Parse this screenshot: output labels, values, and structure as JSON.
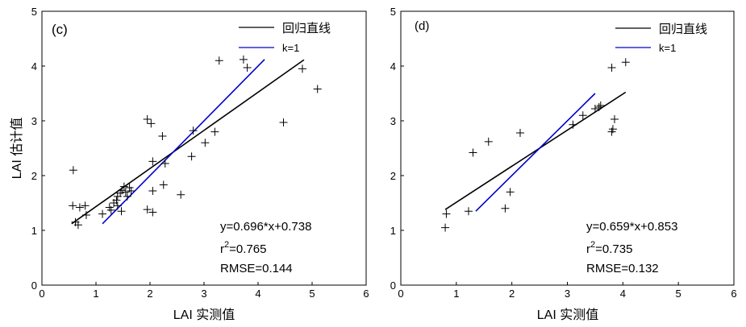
{
  "chart_data": [
    {
      "type": "scatter",
      "panel_label": "(c)",
      "xlabel": "LAI 实测值",
      "ylabel": "LAI 估计值",
      "xlim": [
        0,
        6
      ],
      "ylim": [
        0,
        5
      ],
      "xticks": [
        0,
        1,
        2,
        3,
        4,
        5,
        6
      ],
      "yticks": [
        0,
        1,
        2,
        3,
        4,
        5
      ],
      "grid": false,
      "legend_position": "top-right",
      "legend": [
        "回归直线",
        "k=1"
      ],
      "colors": {
        "regression": "#000000",
        "one_to_one": "#0000cc",
        "points": "#000000",
        "axes": "#000000"
      },
      "marker": "plus",
      "regression": {
        "slope": 0.696,
        "intercept": 0.738,
        "x_range": [
          0.55,
          4.85
        ]
      },
      "one_to_one": {
        "x_range": [
          1.12,
          4.12
        ]
      },
      "annotations": [
        "y=0.696*x+0.738",
        "r",
        "2",
        "=0.765",
        "RMSE=0.144"
      ],
      "points": [
        [
          0.58,
          2.1
        ],
        [
          0.57,
          1.45
        ],
        [
          0.62,
          1.15
        ],
        [
          0.67,
          1.1
        ],
        [
          0.7,
          1.42
        ],
        [
          0.8,
          1.45
        ],
        [
          0.82,
          1.28
        ],
        [
          1.12,
          1.3
        ],
        [
          1.25,
          1.42
        ],
        [
          1.28,
          1.37
        ],
        [
          1.33,
          1.5
        ],
        [
          1.38,
          1.55
        ],
        [
          1.4,
          1.62
        ],
        [
          1.45,
          1.68
        ],
        [
          1.48,
          1.73
        ],
        [
          1.52,
          1.8
        ],
        [
          1.55,
          1.7
        ],
        [
          1.58,
          1.62
        ],
        [
          1.62,
          1.78
        ],
        [
          1.65,
          1.72
        ],
        [
          1.47,
          1.35
        ],
        [
          1.4,
          1.45
        ],
        [
          1.95,
          3.03
        ],
        [
          2.02,
          2.95
        ],
        [
          2.23,
          2.72
        ],
        [
          1.95,
          1.38
        ],
        [
          2.05,
          1.33
        ],
        [
          2.05,
          2.26
        ],
        [
          2.05,
          1.72
        ],
        [
          2.25,
          1.83
        ],
        [
          2.28,
          2.22
        ],
        [
          2.57,
          1.65
        ],
        [
          2.77,
          2.35
        ],
        [
          2.8,
          2.82
        ],
        [
          3.02,
          2.6
        ],
        [
          3.2,
          2.8
        ],
        [
          3.28,
          4.1
        ],
        [
          3.73,
          4.12
        ],
        [
          3.8,
          3.97
        ],
        [
          4.47,
          2.97
        ],
        [
          4.82,
          3.95
        ],
        [
          5.1,
          3.58
        ]
      ]
    },
    {
      "type": "scatter",
      "panel_label": "(d)",
      "xlabel": "LAI 实测值",
      "ylabel": "",
      "xlim": [
        0,
        6
      ],
      "ylim": [
        0,
        5
      ],
      "xticks": [
        0,
        1,
        2,
        3,
        4,
        5,
        6
      ],
      "yticks": [
        0,
        1,
        2,
        3,
        4,
        5
      ],
      "grid": false,
      "legend_position": "top-right",
      "legend": [
        "回归直线",
        "k=1"
      ],
      "colors": {
        "regression": "#000000",
        "one_to_one": "#0000cc",
        "points": "#000000",
        "axes": "#000000"
      },
      "marker": "plus",
      "regression": {
        "slope": 0.659,
        "intercept": 0.853,
        "x_range": [
          0.8,
          4.05
        ]
      },
      "one_to_one": {
        "x_range": [
          1.35,
          3.5
        ]
      },
      "annotations": [
        "y=0.659*x+0.853",
        "r",
        "2",
        "=0.735",
        "RMSE=0.132"
      ],
      "points": [
        [
          0.8,
          1.05
        ],
        [
          0.82,
          1.3
        ],
        [
          1.22,
          1.35
        ],
        [
          1.3,
          2.42
        ],
        [
          1.58,
          2.62
        ],
        [
          1.88,
          1.4
        ],
        [
          1.97,
          1.7
        ],
        [
          2.15,
          2.78
        ],
        [
          3.1,
          2.93
        ],
        [
          3.28,
          3.1
        ],
        [
          3.5,
          3.22
        ],
        [
          3.57,
          3.25
        ],
        [
          3.6,
          3.28
        ],
        [
          3.8,
          2.8
        ],
        [
          3.82,
          2.85
        ],
        [
          3.85,
          3.03
        ],
        [
          3.8,
          3.97
        ],
        [
          4.05,
          4.07
        ]
      ]
    }
  ]
}
